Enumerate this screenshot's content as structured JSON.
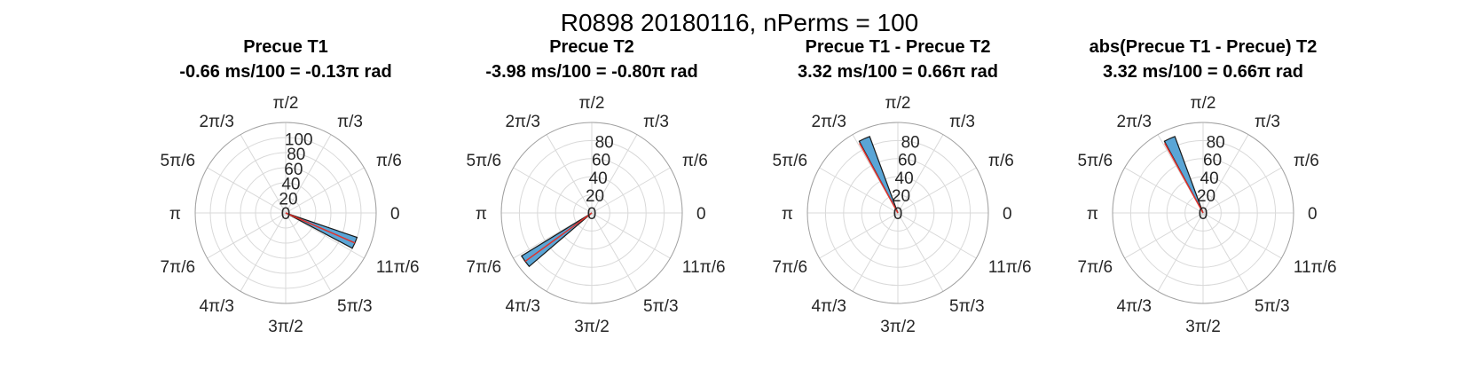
{
  "figure": {
    "title": "R0898 20180116, nPerms = 100"
  },
  "colors": {
    "bar_fill": "#5aa5d6",
    "bar_edge": "#1a1a1a",
    "mean_vector": "#e0312b",
    "grid": "#d9d9d9",
    "outer_ring": "#a0a0a0"
  },
  "angle_tick_labels": [
    "0",
    "π/6",
    "π/3",
    "π/2",
    "2π/3",
    "5π/6",
    "π",
    "7π/6",
    "4π/3",
    "3π/2",
    "5π/3",
    "11π/6"
  ],
  "chart_data": [
    {
      "type": "polar-histogram",
      "title_line1": "Precue T1",
      "title_line2": "-0.66 ms/100 = -0.13π rad",
      "r_ticks": [
        "0",
        "20",
        "40",
        "60",
        "80",
        "100"
      ],
      "rlim": [
        0,
        120
      ],
      "bins": [
        {
          "theta_center": -0.13,
          "theta_width": 0.05,
          "count": 100
        }
      ],
      "mean_vector": {
        "theta": -0.13,
        "length": 100
      }
    },
    {
      "type": "polar-histogram",
      "title_line1": "Precue T2",
      "title_line2": "-3.98 ms/100 = -0.80π rad",
      "r_ticks": [
        "0",
        "20",
        "40",
        "60",
        "80"
      ],
      "rlim": [
        0,
        100
      ],
      "bins": [
        {
          "theta_center": -0.8,
          "theta_width": 0.05,
          "count": 91
        }
      ],
      "mean_vector": {
        "theta": -0.8,
        "length": 91
      }
    },
    {
      "type": "polar-histogram",
      "title_line1": "Precue T1 - Precue T2",
      "title_line2": "3.32 ms/100 = 0.66π rad",
      "r_ticks": [
        "0",
        "20",
        "40",
        "60",
        "80"
      ],
      "rlim": [
        0,
        100
      ],
      "bins": [
        {
          "theta_center": 0.635,
          "theta_width": 0.045,
          "count": 90
        }
      ],
      "mean_vector": {
        "theta": 0.66,
        "length": 88
      }
    },
    {
      "type": "polar-histogram",
      "title_line1": "abs(Precue T1 - Precue) T2",
      "title_line2": "3.32 ms/100 = 0.66π rad",
      "r_ticks": [
        "0",
        "20",
        "40",
        "60",
        "80"
      ],
      "rlim": [
        0,
        100
      ],
      "bins": [
        {
          "theta_center": 0.635,
          "theta_width": 0.045,
          "count": 90
        }
      ],
      "mean_vector": {
        "theta": 0.66,
        "length": 88
      }
    }
  ]
}
